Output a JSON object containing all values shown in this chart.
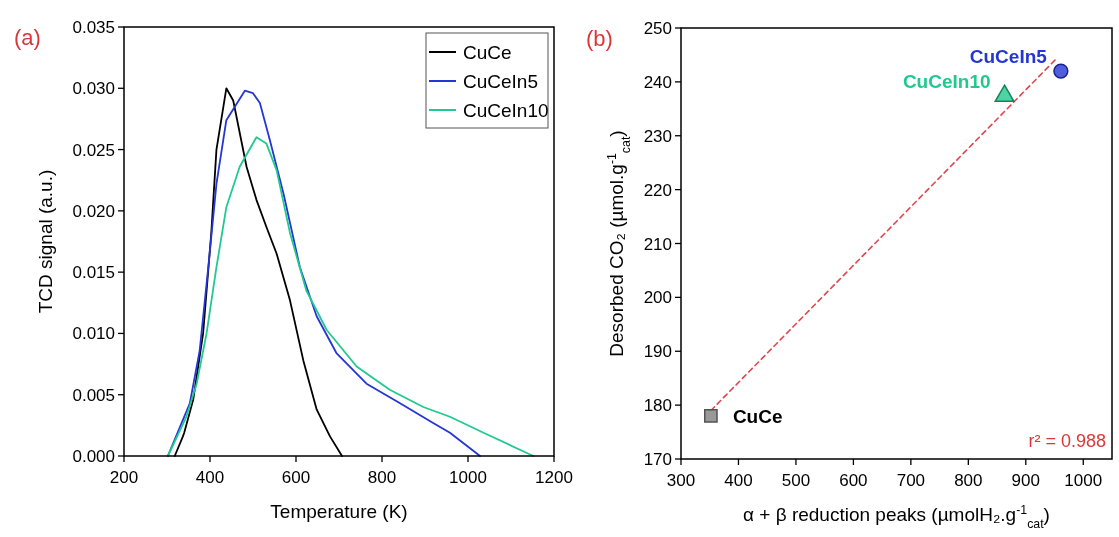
{
  "chart_data": [
    {
      "type": "line",
      "title": "(a)",
      "xlabel": "Temperature (K)",
      "ylabel": "TCD signal (a.u.)",
      "xlim": [
        200,
        1200
      ],
      "ylim": [
        0,
        0.035
      ],
      "xticks": [
        200,
        400,
        600,
        800,
        1000,
        1200
      ],
      "yticks": [
        {
          "value": 0,
          "label": "0.000"
        },
        {
          "value": 0.005,
          "label": "0.005"
        },
        {
          "value": 0.01,
          "label": "0.010"
        },
        {
          "value": 0.015,
          "label": "0.015"
        },
        {
          "value": 0.02,
          "label": "0.020"
        },
        {
          "value": 0.025,
          "label": "0.025"
        },
        {
          "value": 0.03,
          "label": "0.030"
        },
        {
          "value": 0.035,
          "label": "0.035"
        }
      ],
      "grid": false,
      "legend": "top right",
      "marker": "none",
      "line_style": "solid",
      "series": [
        {
          "name": "CuCe",
          "color": "#000000",
          "x": [
            318,
            337,
            340,
            361,
            384,
            403,
            415,
            438,
            454,
            485,
            508,
            531,
            555,
            586,
            617,
            648,
            679,
            707
          ],
          "values": [
            0,
            0.0016,
            0.0019,
            0.0046,
            0.01,
            0.0182,
            0.025,
            0.03,
            0.029,
            0.0236,
            0.0209,
            0.0187,
            0.0165,
            0.0127,
            0.0078,
            0.0038,
            0.0016,
            0
          ]
        },
        {
          "name": "CuCeIn5",
          "color": "#2436d6",
          "x": [
            302,
            353,
            376,
            396,
            415,
            438,
            481,
            500,
            516,
            539,
            571,
            609,
            648,
            694,
            764,
            842,
            919,
            958,
            1028
          ],
          "values": [
            0,
            0.0043,
            0.0086,
            0.0154,
            0.0222,
            0.0274,
            0.0298,
            0.0296,
            0.0288,
            0.0258,
            0.0214,
            0.0154,
            0.0114,
            0.0084,
            0.0059,
            0.0043,
            0.0027,
            0.0019,
            0
          ]
        },
        {
          "name": "CuCeIn10",
          "color": "#21c98f",
          "x": [
            302,
            345,
            369,
            392,
            415,
            438,
            469,
            508,
            531,
            555,
            586,
            624,
            671,
            741,
            818,
            896,
            958,
            1036,
            1152
          ],
          "values": [
            0,
            0.0032,
            0.0059,
            0.01,
            0.0154,
            0.0203,
            0.0236,
            0.026,
            0.0255,
            0.0233,
            0.0182,
            0.0135,
            0.0103,
            0.0073,
            0.0054,
            0.004,
            0.0032,
            0.0019,
            0
          ]
        }
      ]
    },
    {
      "type": "scatter",
      "title": "(b)",
      "xlabel": "α + β reduction peaks (µmolH₂.g$^{-1}$$_{cat}$)",
      "ylabel": "Desorbed CO₂ (µmol.g$^{-1}$$_{cat}$)",
      "xlim": [
        300,
        1050
      ],
      "ylim": [
        170,
        250
      ],
      "xticks": [
        300,
        400,
        500,
        600,
        700,
        800,
        900,
        1000
      ],
      "yticks": [
        170,
        180,
        190,
        200,
        210,
        220,
        230,
        240,
        250
      ],
      "grid": false,
      "legend": false,
      "annotations": [
        "r² = 0.988"
      ],
      "series": [
        {
          "type": "line",
          "color": "#e0474c",
          "line_style": "dashed",
          "marker": "none",
          "x": [
            352,
            955
          ],
          "values": [
            179,
            244.5
          ]
        },
        {
          "name": "CuCe",
          "color": "#7f7f7f",
          "marker": "square",
          "x": [
            352
          ],
          "values": [
            178
          ]
        },
        {
          "name": "CuCeIn5",
          "color": "#2436d6",
          "marker": "circle",
          "x": [
            961
          ],
          "values": [
            242
          ]
        },
        {
          "name": "CuCeIn10",
          "color": "#21c98f",
          "marker": "triangle",
          "x": [
            863
          ],
          "values": [
            237.4
          ]
        }
      ]
    }
  ]
}
